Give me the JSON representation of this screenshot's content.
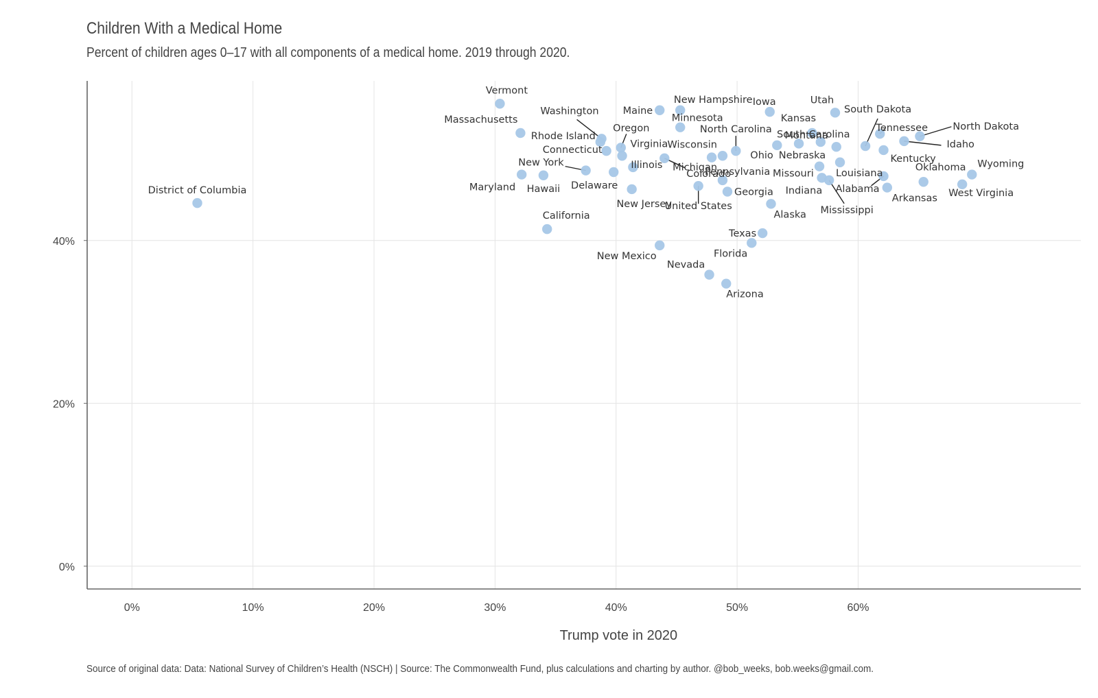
{
  "chart_data": {
    "type": "scatter",
    "title": "Children With a Medical Home",
    "subtitle": "Percent of children ages 0–17 with all components of a medical home. 2019 through 2020.",
    "xlabel": "Trump vote in 2020",
    "ylabel": "",
    "caption": "Source of original data: Data: National Survey of Children’s Health (NSCH) | Source: The Commonwealth Fund, plus calculations and charting by author. @bob_weeks, bob.weeks@gmail.com.",
    "xlim": [
      -0.037,
      0.784
    ],
    "ylim": [
      -0.028,
      0.596
    ],
    "x_ticks": [
      0,
      0.1,
      0.2,
      0.3,
      0.4,
      0.5,
      0.6
    ],
    "x_tick_labels": [
      "0%",
      "10%",
      "20%",
      "30%",
      "40%",
      "50%",
      "60%"
    ],
    "y_ticks": [
      0,
      0.2,
      0.4
    ],
    "y_tick_labels": [
      "0%",
      "20%",
      "40%"
    ],
    "grid": true,
    "point_color": "#a7c7e7",
    "points": [
      {
        "label": "District of Columbia",
        "x": 0.054,
        "y": 0.446
      },
      {
        "label": "Vermont",
        "x": 0.304,
        "y": 0.568
      },
      {
        "label": "Massachusetts",
        "x": 0.321,
        "y": 0.532
      },
      {
        "label": "Maryland",
        "x": 0.322,
        "y": 0.481
      },
      {
        "label": "Hawaii",
        "x": 0.34,
        "y": 0.48
      },
      {
        "label": "California",
        "x": 0.343,
        "y": 0.414
      },
      {
        "label": "New York",
        "x": 0.375,
        "y": 0.486
      },
      {
        "label": "Rhode Island",
        "x": 0.387,
        "y": 0.521
      },
      {
        "label": "Washington",
        "x": 0.388,
        "y": 0.525
      },
      {
        "label": "Connecticut",
        "x": 0.392,
        "y": 0.51
      },
      {
        "label": "Delaware",
        "x": 0.398,
        "y": 0.484
      },
      {
        "label": "Oregon",
        "x": 0.404,
        "y": 0.514
      },
      {
        "label": "Virginia",
        "x": 0.405,
        "y": 0.504
      },
      {
        "label": "Illinois",
        "x": 0.414,
        "y": 0.49
      },
      {
        "label": "New Jersey",
        "x": 0.413,
        "y": 0.463
      },
      {
        "label": "Maine",
        "x": 0.436,
        "y": 0.56
      },
      {
        "label": "New Mexico",
        "x": 0.436,
        "y": 0.394
      },
      {
        "label": "Colorado",
        "x": 0.44,
        "y": 0.501
      },
      {
        "label": "New Hampshire",
        "x": 0.453,
        "y": 0.56
      },
      {
        "label": "Minnesota",
        "x": 0.453,
        "y": 0.539
      },
      {
        "label": "United States",
        "x": 0.468,
        "y": 0.467
      },
      {
        "label": "Nevada",
        "x": 0.477,
        "y": 0.358
      },
      {
        "label": "Michigan",
        "x": 0.479,
        "y": 0.502
      },
      {
        "label": "Wisconsin",
        "x": 0.488,
        "y": 0.504
      },
      {
        "label": "Pennsylvania",
        "x": 0.488,
        "y": 0.474
      },
      {
        "label": "Arizona",
        "x": 0.491,
        "y": 0.347
      },
      {
        "label": "Georgia",
        "x": 0.492,
        "y": 0.46
      },
      {
        "label": "North Carolina",
        "x": 0.499,
        "y": 0.51
      },
      {
        "label": "Florida",
        "x": 0.512,
        "y": 0.397
      },
      {
        "label": "Texas",
        "x": 0.521,
        "y": 0.409
      },
      {
        "label": "Iowa",
        "x": 0.527,
        "y": 0.558
      },
      {
        "label": "Alaska",
        "x": 0.528,
        "y": 0.445
      },
      {
        "label": "Ohio",
        "x": 0.533,
        "y": 0.517
      },
      {
        "label": "South Carolina",
        "x": 0.551,
        "y": 0.519
      },
      {
        "label": "Kansas",
        "x": 0.562,
        "y": 0.532
      },
      {
        "label": "Missouri",
        "x": 0.568,
        "y": 0.491
      },
      {
        "label": "Nebraska",
        "x": 0.569,
        "y": 0.521
      },
      {
        "label": "Indiana",
        "x": 0.57,
        "y": 0.477
      },
      {
        "label": "Mississippi",
        "x": 0.576,
        "y": 0.474
      },
      {
        "label": "Utah",
        "x": 0.581,
        "y": 0.557
      },
      {
        "label": "Montana",
        "x": 0.582,
        "y": 0.515
      },
      {
        "label": "Louisiana",
        "x": 0.585,
        "y": 0.496
      },
      {
        "label": "South Dakota",
        "x": 0.606,
        "y": 0.516
      },
      {
        "label": "Tennessee",
        "x": 0.618,
        "y": 0.531
      },
      {
        "label": "Kentucky",
        "x": 0.621,
        "y": 0.511
      },
      {
        "label": "Alabama",
        "x": 0.621,
        "y": 0.479
      },
      {
        "label": "Arkansas",
        "x": 0.624,
        "y": 0.465
      },
      {
        "label": "Idaho",
        "x": 0.638,
        "y": 0.522
      },
      {
        "label": "North Dakota",
        "x": 0.651,
        "y": 0.528
      },
      {
        "label": "Oklahoma",
        "x": 0.654,
        "y": 0.472
      },
      {
        "label": "West Virginia",
        "x": 0.686,
        "y": 0.469
      },
      {
        "label": "Wyoming",
        "x": 0.694,
        "y": 0.481
      }
    ]
  }
}
